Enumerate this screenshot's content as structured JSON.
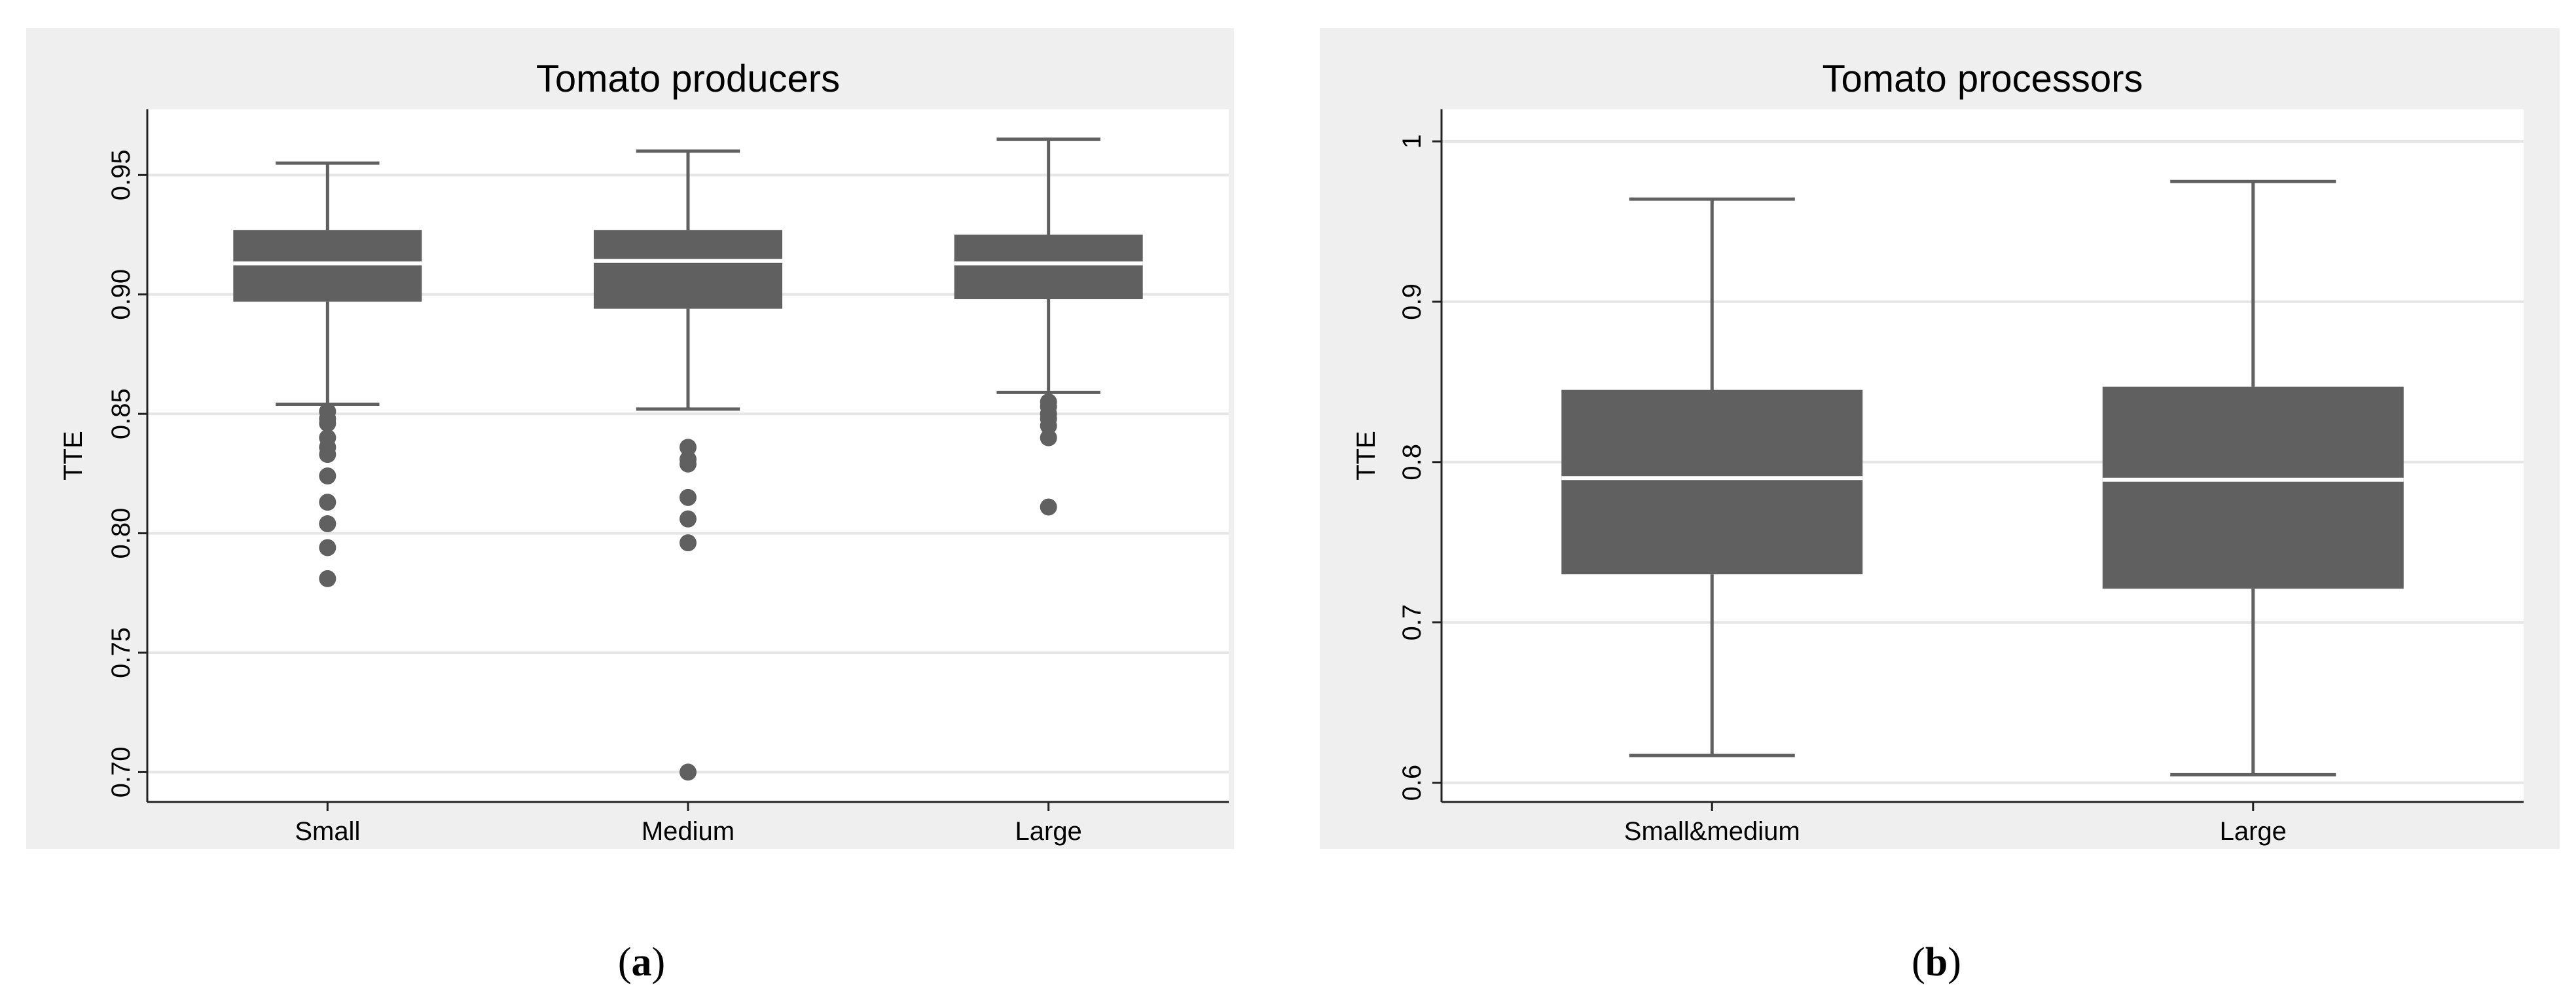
{
  "colors": {
    "outer_bg": "#efefef",
    "plot_bg": "#ffffff",
    "grid": "#e6e6e6",
    "box_fill": "#606060",
    "median": "#ffffff",
    "whisker": "#606060",
    "outlier": "#606060",
    "axis": "#222222",
    "text": "#000000"
  },
  "chart_data": [
    {
      "type": "box",
      "panel_label": "a",
      "title": "Tomato producers",
      "xlabel": "",
      "ylabel": "TTE",
      "ylim": [
        0.6875,
        0.9775
      ],
      "yticks": [
        0.7,
        0.75,
        0.8,
        0.85,
        0.9,
        0.95
      ],
      "ytick_labels": [
        "0.70",
        "0.75",
        "0.80",
        "0.85",
        "0.90",
        "0.95"
      ],
      "categories": [
        "Small",
        "Medium",
        "Large"
      ],
      "grid": true,
      "boxes": [
        {
          "q1": 0.897,
          "median": 0.913,
          "q3": 0.927,
          "whisker_low": 0.854,
          "whisker_high": 0.955,
          "outliers": [
            0.851,
            0.848,
            0.846,
            0.84,
            0.836,
            0.833,
            0.824,
            0.813,
            0.804,
            0.794,
            0.781
          ]
        },
        {
          "q1": 0.894,
          "median": 0.914,
          "q3": 0.927,
          "whisker_low": 0.852,
          "whisker_high": 0.96,
          "outliers": [
            0.836,
            0.831,
            0.829,
            0.815,
            0.806,
            0.796,
            0.7
          ]
        },
        {
          "q1": 0.898,
          "median": 0.913,
          "q3": 0.925,
          "whisker_low": 0.859,
          "whisker_high": 0.965,
          "outliers": [
            0.855,
            0.853,
            0.85,
            0.848,
            0.845,
            0.84,
            0.811
          ]
        }
      ]
    },
    {
      "type": "box",
      "panel_label": "b",
      "title": "Tomato processors",
      "xlabel": "",
      "ylabel": "TTE",
      "ylim": [
        0.588,
        1.02
      ],
      "yticks": [
        0.6,
        0.7,
        0.8,
        0.9,
        1.0
      ],
      "ytick_labels": [
        "0.6",
        "0.7",
        "0.8",
        "0.9",
        "1"
      ],
      "categories": [
        "Small&medium",
        "Large"
      ],
      "grid": true,
      "boxes": [
        {
          "q1": 0.73,
          "median": 0.79,
          "q3": 0.845,
          "whisker_low": 0.617,
          "whisker_high": 0.964,
          "outliers": []
        },
        {
          "q1": 0.721,
          "median": 0.789,
          "q3": 0.847,
          "whisker_low": 0.605,
          "whisker_high": 0.975,
          "outliers": []
        }
      ]
    }
  ]
}
